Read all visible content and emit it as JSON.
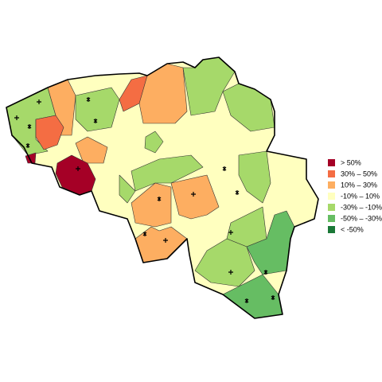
{
  "legend": {
    "items": [
      {
        "label": "> 50%",
        "color": "#a50026"
      },
      {
        "label": "30%  –  50%",
        "color": "#f46d43"
      },
      {
        "label": "10%  –  30%",
        "color": "#fdae61"
      },
      {
        "label": "-10%  –  10%",
        "color": "#ffffbf"
      },
      {
        "label": "-30%  – -10%",
        "color": "#a6d96a"
      },
      {
        "label": "-50%  – -30%",
        "color": "#66bd63"
      },
      {
        "label": "< -50%",
        "color": "#1a7837"
      }
    ]
  }
}
